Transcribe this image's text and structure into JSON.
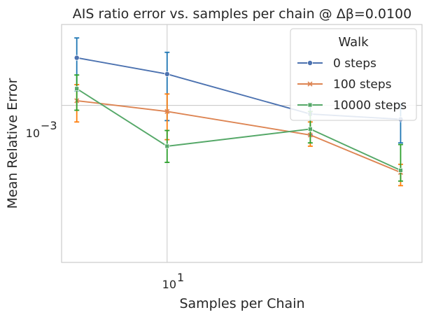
{
  "chart_data": {
    "type": "line",
    "title": "AIS ratio error vs. samples per chain @ Δβ=0.0100",
    "xlabel": "Samples per Chain",
    "ylabel": "Mean Relative Error",
    "xscale": "log",
    "yscale": "log",
    "xlim": [
      4.45,
      70.7
    ],
    "ylim": [
      0.000268,
      0.00197
    ],
    "x": [
      5,
      10,
      30,
      60
    ],
    "x_tick_label": {
      "base": "10",
      "exponent": "1"
    },
    "y_tick_label": {
      "base": "10",
      "exponent": "−3"
    },
    "grid": true,
    "legend": {
      "title": "Walk",
      "placement": "top-right"
    },
    "series": [
      {
        "name": "0 steps",
        "color": "#4c72b0",
        "error_color": "#1f77b4",
        "marker": "circle",
        "values": [
          0.00149,
          0.0013,
          0.00093,
          0.00089
        ],
        "err_low": [
          0.00113,
          0.00088,
          0.00078,
          0.00073
        ],
        "err_high": [
          0.00176,
          0.00156,
          0.00102,
          0.00101
        ]
      },
      {
        "name": "100 steps",
        "color": "#dd8452",
        "error_color": "#ff7f0e",
        "marker": "x",
        "values": [
          0.00104,
          0.00095,
          0.00078,
          0.00057
        ],
        "err_low": [
          0.00087,
          0.00075,
          0.00071,
          0.00051
        ],
        "err_high": [
          0.00119,
          0.0011,
          0.00087,
          0.00061
        ]
      },
      {
        "name": "10000 steps",
        "color": "#55a868",
        "error_color": "#2ca02c",
        "marker": "square",
        "values": [
          0.00115,
          0.00071,
          0.00082,
          0.00058
        ],
        "err_low": [
          0.00096,
          0.00062,
          0.00073,
          0.00053
        ],
        "err_high": [
          0.00129,
          0.00081,
          0.00095,
          0.00072
        ]
      }
    ]
  }
}
